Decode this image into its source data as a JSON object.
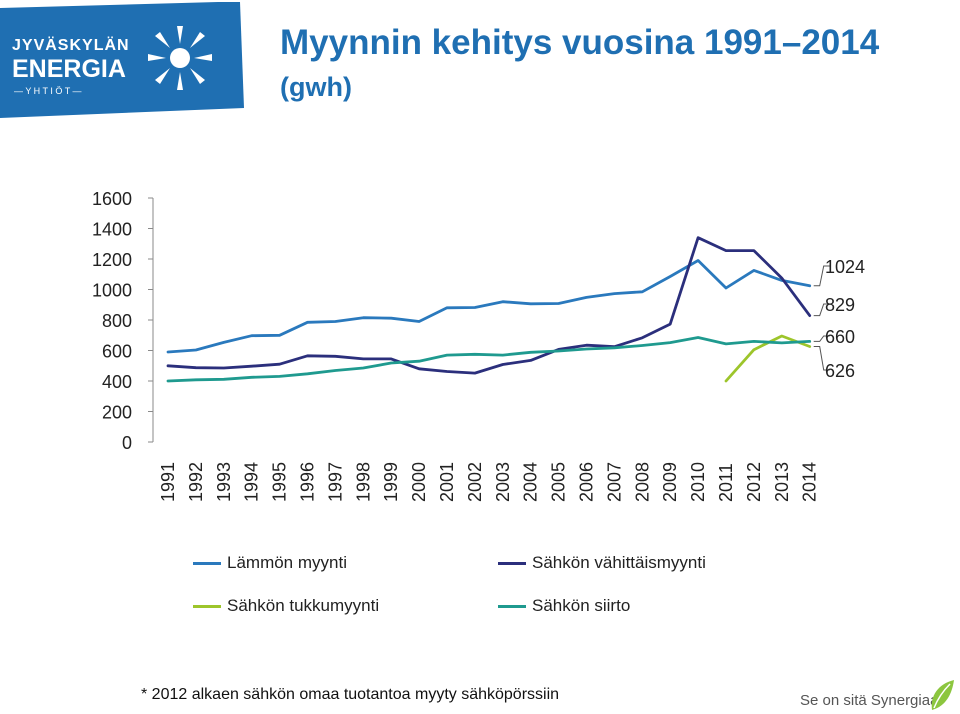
{
  "logo": {
    "line1": "JYVÄSKYLÄN",
    "line2": "ENERGIA",
    "line3": "— Y H T I Ö T —"
  },
  "title": {
    "main": "Myynnin kehitys vuosina 1991–2014",
    "unit": "(gwh)"
  },
  "chart_data": {
    "type": "line",
    "title": "Myynnin kehitys vuosina 1991–2014 (gwh)",
    "xlabel": "",
    "ylabel": "",
    "ylim": [
      0,
      1600
    ],
    "yticks": [
      "0",
      "200",
      "400",
      "600",
      "800",
      "1000",
      "1200",
      "1400",
      "1600"
    ],
    "categories": [
      "1991",
      "1992",
      "1993",
      "1994",
      "1995",
      "1996",
      "1997",
      "1998",
      "1999",
      "2000",
      "2001",
      "2002",
      "2003",
      "2004",
      "2005",
      "2006",
      "2007",
      "2008",
      "2009",
      "2010",
      "2011",
      "2012",
      "2013",
      "2014"
    ],
    "series": [
      {
        "name": "Lämmön myynti",
        "color": "#2a79bd",
        "values": [
          590,
          603,
          653,
          697,
          700,
          785,
          790,
          815,
          812,
          790,
          880,
          882,
          920,
          906,
          908,
          948,
          973,
          985,
          1085,
          1190,
          1010,
          1125,
          1060,
          1024
        ]
      },
      {
        "name": "Sähkön vähittäismyynti",
        "color": "#2b2f7c",
        "values": [
          500,
          487,
          485,
          497,
          510,
          565,
          562,
          545,
          545,
          480,
          462,
          452,
          508,
          535,
          607,
          635,
          625,
          683,
          773,
          1340,
          1255,
          1255,
          1075,
          829
        ]
      },
      {
        "name": "Sähkön tukkumyynti",
        "color": "#9dc52b",
        "values": [
          null,
          null,
          null,
          null,
          null,
          null,
          null,
          null,
          null,
          null,
          null,
          null,
          null,
          null,
          null,
          null,
          null,
          null,
          null,
          null,
          400,
          605,
          695,
          626
        ]
      },
      {
        "name": "Sähkön siirto",
        "color": "#1f9a8f",
        "values": [
          400,
          408,
          411,
          424,
          430,
          447,
          469,
          485,
          518,
          530,
          570,
          575,
          570,
          588,
          597,
          610,
          618,
          633,
          652,
          685,
          643,
          660,
          650,
          660
        ]
      }
    ],
    "end_labels": [
      "1024",
      "829",
      "660",
      "626"
    ]
  },
  "legend": [
    {
      "label": "Lämmön myynti",
      "color": "#2a79bd"
    },
    {
      "label": "Sähkön vähittäismyynti",
      "color": "#2b2f7c"
    },
    {
      "label": "Sähkön tukkumyynti",
      "color": "#9dc52b"
    },
    {
      "label": "Sähkön siirto",
      "color": "#1f9a8f"
    }
  ],
  "footnote": "* 2012 alkaen sähkön omaa tuotantoa myyty sähköpörssiin",
  "slogan": "Se on sitä Synergiaa."
}
